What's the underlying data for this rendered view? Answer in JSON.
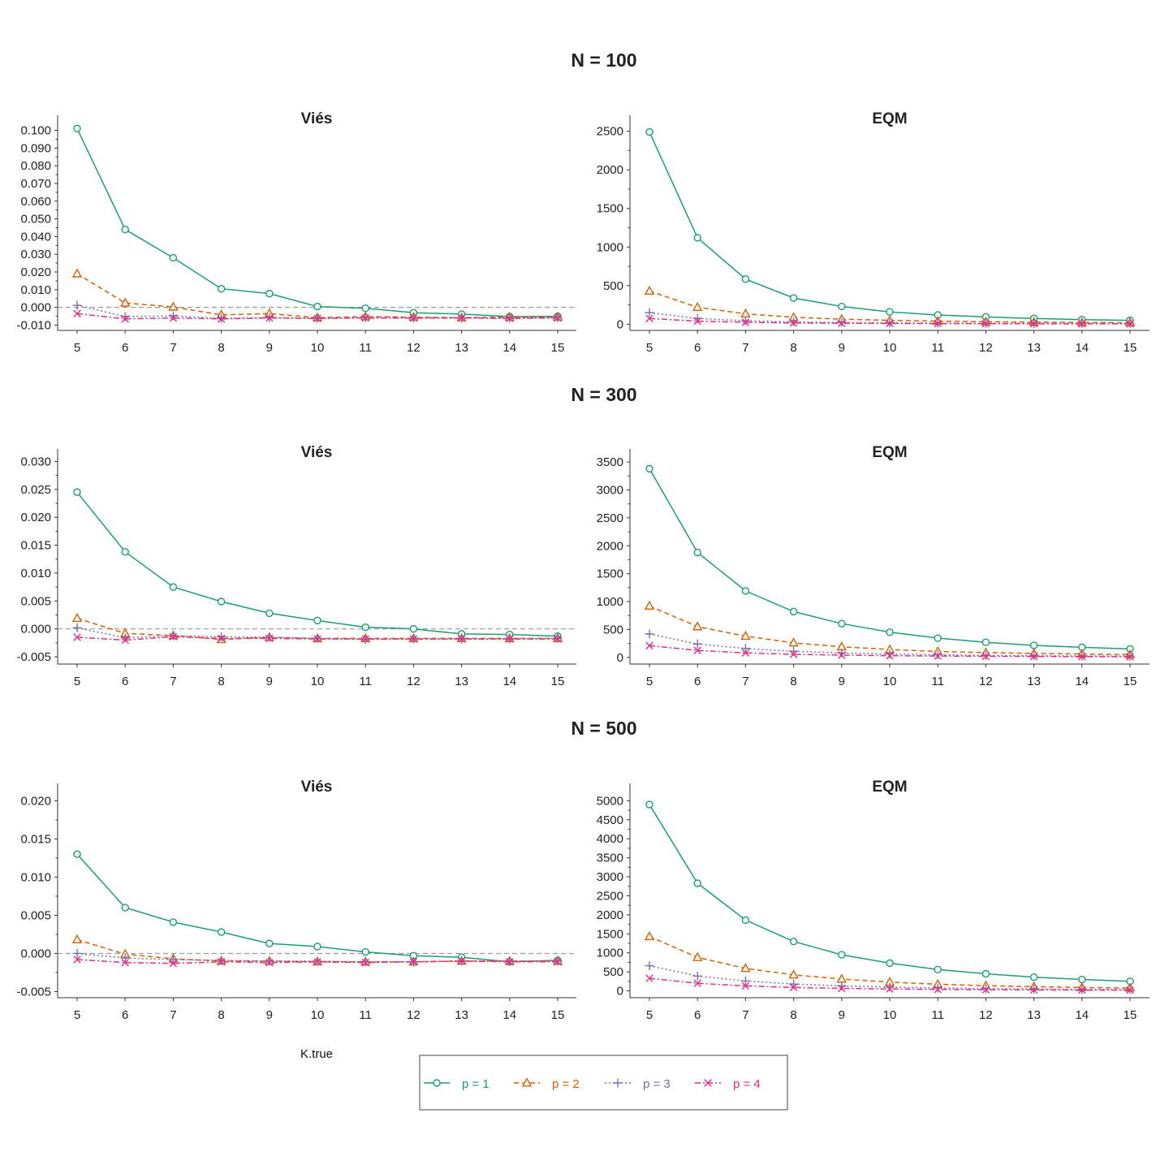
{
  "figure": {
    "x_axis_label": "K.true",
    "zero_line_color": "#999999"
  },
  "legend": {
    "items": [
      {
        "label": "p = 1",
        "color": "#1b9e77",
        "marker": "circle",
        "dash": "solid"
      },
      {
        "label": "p = 2",
        "color": "#d95f02",
        "marker": "triangle",
        "dash": "dashed"
      },
      {
        "label": "p = 3",
        "color": "#7570b3",
        "marker": "plus",
        "dash": "dotted"
      },
      {
        "label": "p = 4",
        "color": "#e7298a",
        "marker": "x",
        "dash": "dashdot"
      }
    ]
  },
  "rows": [
    {
      "title": "N = 100"
    },
    {
      "title": "N = 300"
    },
    {
      "title": "N = 500"
    }
  ],
  "chart_data": [
    {
      "type": "line",
      "row_title": "N = 100",
      "title": "Viés",
      "x": [
        5,
        6,
        7,
        8,
        9,
        10,
        11,
        12,
        13,
        14,
        15
      ],
      "ylim": [
        -0.013,
        0.103
      ],
      "yticks": [
        -0.01,
        0.0,
        0.01,
        0.02,
        0.03,
        0.04,
        0.05,
        0.06,
        0.07,
        0.08,
        0.09,
        0.1
      ],
      "ytick_labels": [
        "-0.010",
        "0.000",
        "0.010",
        "0.020",
        "0.030",
        "0.040",
        "0.050",
        "0.060",
        "0.070",
        "0.080",
        "0.090",
        "0.100"
      ],
      "zero_line": true,
      "series": [
        {
          "name": "p = 1",
          "values": [
            0.101,
            0.044,
            0.028,
            0.0105,
            0.0078,
            0.0005,
            -0.0005,
            -0.003,
            -0.0038,
            -0.0052,
            -0.005
          ]
        },
        {
          "name": "p = 2",
          "values": [
            0.019,
            0.0025,
            0.0002,
            -0.0042,
            -0.0035,
            -0.0058,
            -0.0052,
            -0.0055,
            -0.0058,
            -0.0055,
            -0.0055
          ]
        },
        {
          "name": "p = 3",
          "values": [
            0.0012,
            -0.0052,
            -0.0048,
            -0.0062,
            -0.0058,
            -0.0062,
            -0.0058,
            -0.006,
            -0.006,
            -0.006,
            -0.0058
          ]
        },
        {
          "name": "p = 4",
          "values": [
            -0.0035,
            -0.0065,
            -0.006,
            -0.0065,
            -0.006,
            -0.0062,
            -0.006,
            -0.006,
            -0.006,
            -0.0062,
            -0.006
          ]
        }
      ]
    },
    {
      "type": "line",
      "row_title": "N = 100",
      "title": "EQM",
      "x": [
        5,
        6,
        7,
        8,
        9,
        10,
        11,
        12,
        13,
        14,
        15
      ],
      "ylim": [
        -80,
        2580
      ],
      "yticks": [
        0,
        500,
        1000,
        1500,
        2000,
        2500
      ],
      "ytick_labels": [
        "0",
        "500",
        "1000",
        "1500",
        "2000",
        "2500"
      ],
      "zero_line": false,
      "series": [
        {
          "name": "p = 1",
          "values": [
            2490,
            1120,
            585,
            340,
            230,
            160,
            120,
            95,
            75,
            60,
            50
          ]
        },
        {
          "name": "p = 2",
          "values": [
            430,
            220,
            135,
            90,
            65,
            50,
            40,
            32,
            27,
            22,
            20
          ]
        },
        {
          "name": "p = 3",
          "values": [
            150,
            75,
            45,
            30,
            22,
            17,
            14,
            11,
            10,
            9,
            8
          ]
        },
        {
          "name": "p = 4",
          "values": [
            75,
            40,
            25,
            17,
            13,
            10,
            8,
            7,
            6,
            5,
            5
          ]
        }
      ]
    },
    {
      "type": "line",
      "row_title": "N = 300",
      "title": "Viés",
      "x": [
        5,
        6,
        7,
        8,
        9,
        10,
        11,
        12,
        13,
        14,
        15
      ],
      "ylim": [
        -0.0063,
        0.0305
      ],
      "yticks": [
        -0.005,
        0.0,
        0.005,
        0.01,
        0.015,
        0.02,
        0.025,
        0.03
      ],
      "ytick_labels": [
        "-0.005",
        "0.000",
        "0.005",
        "0.010",
        "0.015",
        "0.020",
        "0.025",
        "0.030"
      ],
      "zero_line": true,
      "series": [
        {
          "name": "p = 1",
          "values": [
            0.0245,
            0.0138,
            0.0075,
            0.0049,
            0.0028,
            0.0015,
            0.0003,
            0.0,
            -0.0009,
            -0.001,
            -0.0013
          ]
        },
        {
          "name": "p = 2",
          "values": [
            0.0019,
            -0.0008,
            -0.0012,
            -0.0019,
            -0.0015,
            -0.0017,
            -0.0017,
            -0.0017,
            -0.0017,
            -0.0017,
            -0.0017
          ]
        },
        {
          "name": "p = 3",
          "values": [
            0.0002,
            -0.0016,
            -0.0012,
            -0.0014,
            -0.0015,
            -0.0017,
            -0.0019,
            -0.0018,
            -0.0018,
            -0.0018,
            -0.0017
          ]
        },
        {
          "name": "p = 4",
          "values": [
            -0.0015,
            -0.002,
            -0.0014,
            -0.0017,
            -0.0017,
            -0.0018,
            -0.0018,
            -0.0018,
            -0.0018,
            -0.0018,
            -0.0018
          ]
        }
      ]
    },
    {
      "type": "line",
      "row_title": "N = 300",
      "title": "EQM",
      "x": [
        5,
        6,
        7,
        8,
        9,
        10,
        11,
        12,
        13,
        14,
        15
      ],
      "ylim": [
        -120,
        3560
      ],
      "yticks": [
        0,
        500,
        1000,
        1500,
        2000,
        2500,
        3000,
        3500
      ],
      "ytick_labels": [
        "0",
        "500",
        "1000",
        "1500",
        "2000",
        "2500",
        "3000",
        "3500"
      ],
      "zero_line": false,
      "series": [
        {
          "name": "p = 1",
          "values": [
            3380,
            1880,
            1190,
            820,
            605,
            450,
            345,
            270,
            215,
            180,
            150
          ]
        },
        {
          "name": "p = 2",
          "values": [
            920,
            550,
            380,
            260,
            190,
            140,
            105,
            85,
            70,
            60,
            50
          ]
        },
        {
          "name": "p = 3",
          "values": [
            420,
            240,
            160,
            110,
            80,
            60,
            45,
            35,
            30,
            25,
            22
          ]
        },
        {
          "name": "p = 4",
          "values": [
            210,
            125,
            80,
            55,
            40,
            30,
            24,
            19,
            16,
            14,
            12
          ]
        }
      ]
    },
    {
      "type": "line",
      "row_title": "N = 500",
      "title": "Viés",
      "x": [
        5,
        6,
        7,
        8,
        9,
        10,
        11,
        12,
        13,
        14,
        15
      ],
      "ylim": [
        -0.0058,
        0.021
      ],
      "yticks": [
        -0.005,
        0.0,
        0.005,
        0.01,
        0.015,
        0.02
      ],
      "ytick_labels": [
        "-0.005",
        "0.000",
        "0.005",
        "0.010",
        "0.015",
        "0.020"
      ],
      "zero_line": true,
      "series": [
        {
          "name": "p = 1",
          "values": [
            0.013,
            0.006,
            0.0041,
            0.0028,
            0.0013,
            0.0009,
            0.0002,
            -0.0003,
            -0.0005,
            -0.0011,
            -0.0009
          ]
        },
        {
          "name": "p = 2",
          "values": [
            0.0018,
            -0.0001,
            -0.0007,
            -0.001,
            -0.001,
            -0.0011,
            -0.0011,
            -0.0011,
            -0.001,
            -0.001,
            -0.001
          ]
        },
        {
          "name": "p = 3",
          "values": [
            0.0,
            -0.0006,
            -0.0008,
            -0.0009,
            -0.001,
            -0.001,
            -0.0011,
            -0.0011,
            -0.001,
            -0.001,
            -0.001
          ]
        },
        {
          "name": "p = 4",
          "values": [
            -0.0008,
            -0.0012,
            -0.0013,
            -0.0011,
            -0.0012,
            -0.0011,
            -0.0012,
            -0.0011,
            -0.001,
            -0.0011,
            -0.0011
          ]
        }
      ]
    },
    {
      "type": "line",
      "row_title": "N = 500",
      "title": "EQM",
      "x": [
        5,
        6,
        7,
        8,
        9,
        10,
        11,
        12,
        13,
        14,
        15
      ],
      "ylim": [
        -180,
        5200
      ],
      "yticks": [
        0,
        500,
        1000,
        1500,
        2000,
        2500,
        3000,
        3500,
        4000,
        4500,
        5000
      ],
      "ytick_labels": [
        "0",
        "500",
        "1000",
        "1500",
        "2000",
        "2500",
        "3000",
        "3500",
        "4000",
        "4500",
        "5000"
      ],
      "zero_line": false,
      "series": [
        {
          "name": "p = 1",
          "values": [
            4900,
            2830,
            1860,
            1300,
            950,
            730,
            560,
            450,
            360,
            300,
            250
          ]
        },
        {
          "name": "p = 2",
          "values": [
            1430,
            880,
            590,
            420,
            310,
            230,
            175,
            135,
            110,
            90,
            75
          ]
        },
        {
          "name": "p = 3",
          "values": [
            660,
            390,
            260,
            180,
            130,
            100,
            75,
            60,
            48,
            40,
            35
          ]
        },
        {
          "name": "p = 4",
          "values": [
            330,
            200,
            130,
            90,
            65,
            50,
            38,
            30,
            25,
            21,
            18
          ]
        }
      ]
    }
  ]
}
